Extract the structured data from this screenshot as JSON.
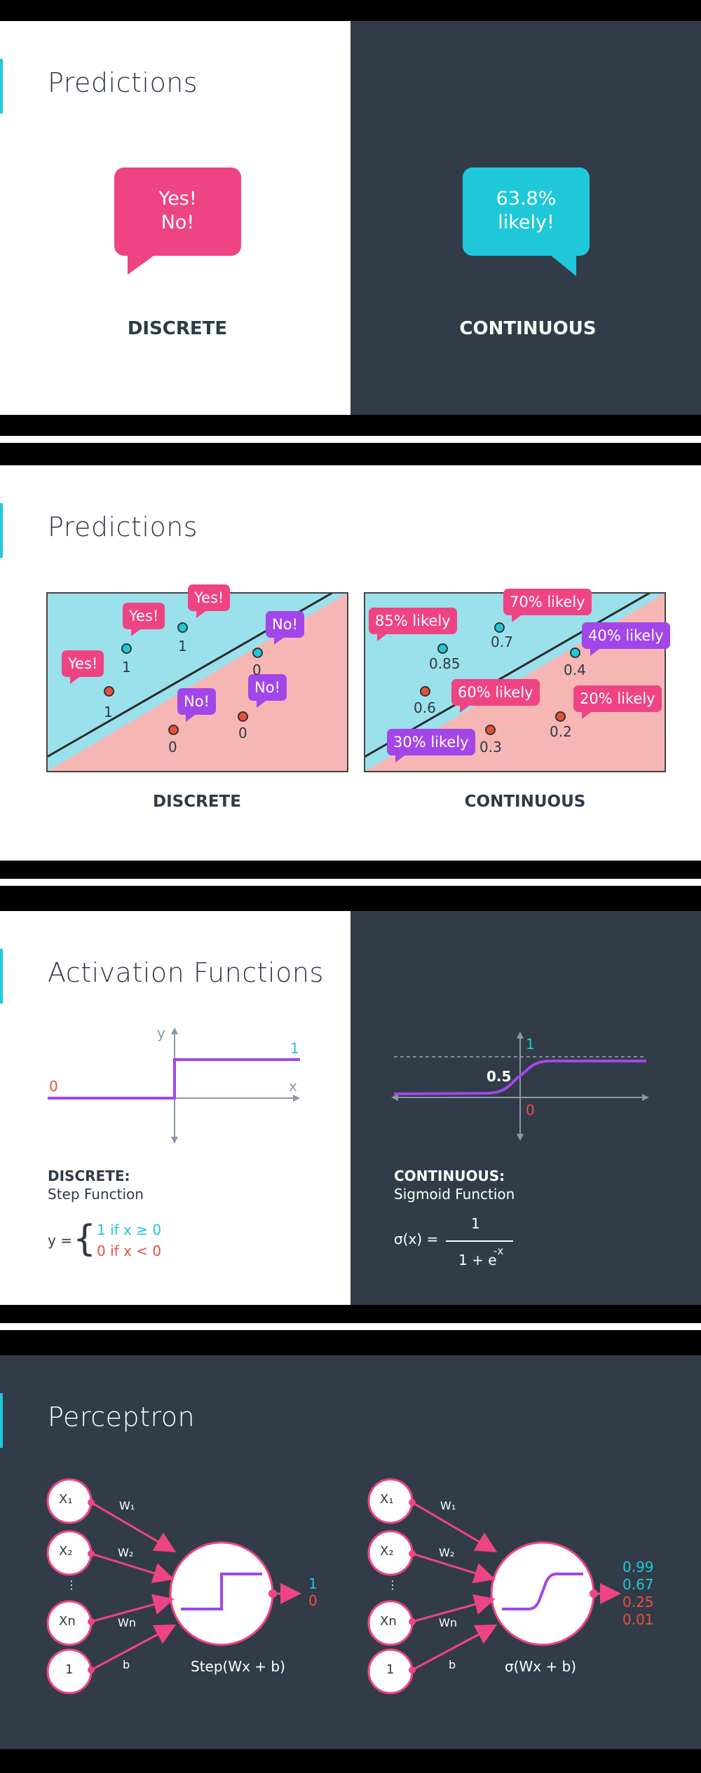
{
  "slide1": {
    "title": "Predictions",
    "discrete_bubble_line1": "Yes!",
    "discrete_bubble_line2": "No!",
    "discrete_label": "DISCRETE",
    "continuous_bubble_line1": "63.8%",
    "continuous_bubble_line2": "likely!",
    "continuous_label": "CONTINUOUS",
    "colors": {
      "pink": "#ef4483",
      "cyan": "#1ec8d8",
      "dark": "#2e3a47"
    }
  },
  "slide2": {
    "title": "Predictions",
    "discrete_label": "DISCRETE",
    "continuous_label": "CONTINUOUS",
    "discrete_bubbles": [
      "Yes!",
      "Yes!",
      "Yes!",
      "No!",
      "No!",
      "No!"
    ],
    "discrete_points": [
      "1",
      "1",
      "1",
      "0",
      "0",
      "0"
    ],
    "continuous_bubbles": [
      "85% likely",
      "70% likely",
      "40% likely",
      "60% likely",
      "20% likely",
      "30% likely"
    ],
    "continuous_points": [
      "0.85",
      "0.7",
      "0.4",
      "0.6",
      "0.2",
      "0.3"
    ]
  },
  "slide3": {
    "title": "Activation Functions",
    "step_axis_y": "y",
    "step_axis_x": "x",
    "step_one": "1",
    "step_zero": "0",
    "discrete_heading": "DISCRETE:",
    "discrete_sub": "Step Function",
    "step_eq_lhs": "y =",
    "step_case1": "1 if x  ≥ 0",
    "step_case2": "0 if x < 0",
    "sig_one": "1",
    "sig_zero": "0",
    "sig_half": "0.5",
    "continuous_heading": "CONTINUOUS:",
    "continuous_sub": "Sigmoid Function",
    "sig_eq_lhs": "σ(x) =",
    "sig_numerator": "1",
    "sig_denominator": "1 + e",
    "sig_exponent": "-x"
  },
  "slide4": {
    "title": "Perceptron",
    "inputs": [
      "X₁",
      "X₂",
      "⋮",
      "Xn",
      "1"
    ],
    "weights": [
      "W₁",
      "W₂",
      "Wn",
      "b"
    ],
    "step_formula": "Step(Wx + b)",
    "step_outputs": [
      "1",
      "0"
    ],
    "sigmoid_formula": "σ(Wx + b)",
    "sigmoid_outputs": [
      "0.99",
      "0.67",
      "0.25",
      "0.01"
    ]
  }
}
